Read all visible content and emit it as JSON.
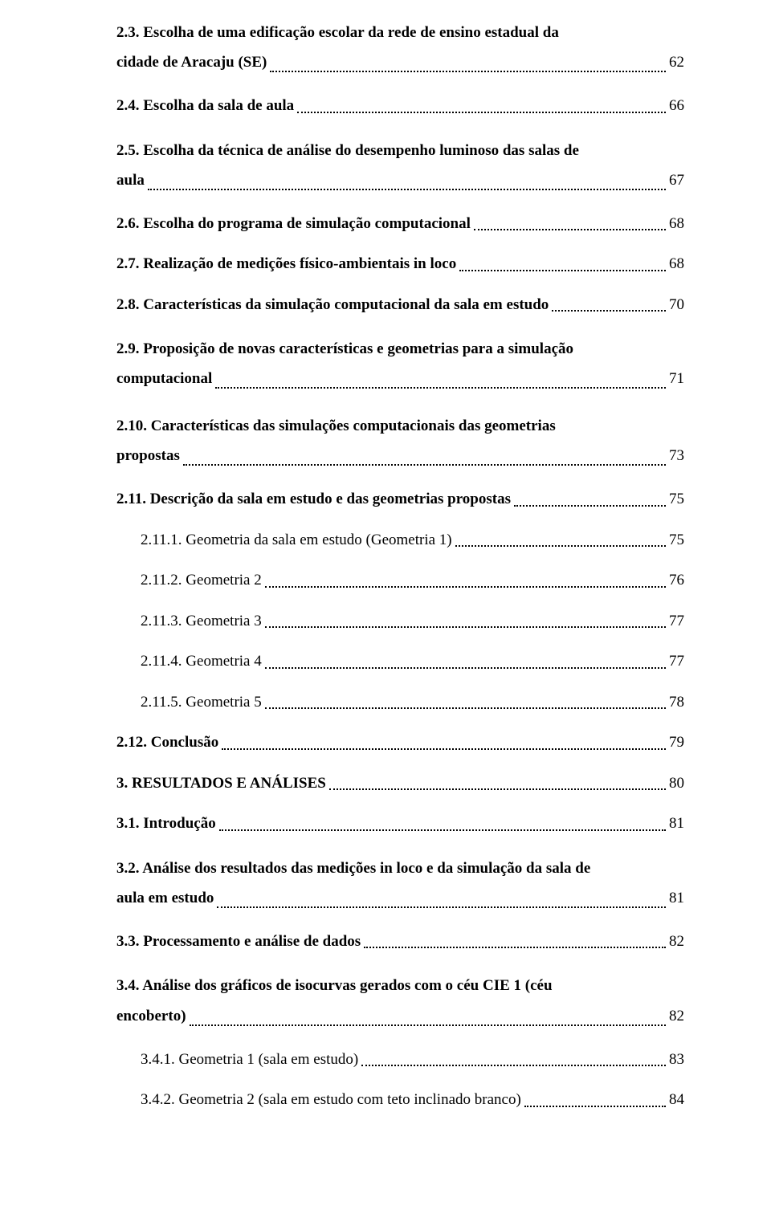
{
  "entries": [
    {
      "type": "multiline",
      "bold": true,
      "indent": 0,
      "line1": "2.3. Escolha de uma edificação escolar da rede de ensino estadual da",
      "line2_text": "cidade de Aracaju (SE)",
      "page": "62"
    },
    {
      "type": "single",
      "bold": true,
      "indent": 0,
      "text": "2.4. Escolha da sala de aula",
      "page": "66"
    },
    {
      "type": "multiline",
      "bold": true,
      "indent": 0,
      "line1": "2.5. Escolha da técnica de análise do desempenho luminoso das salas de",
      "line2_text": "aula",
      "page": "67"
    },
    {
      "type": "single",
      "bold": true,
      "indent": 0,
      "text": "2.6. Escolha do programa de simulação computacional",
      "page": "68"
    },
    {
      "type": "single",
      "bold": true,
      "indent": 0,
      "text": "2.7. Realização de medições físico-ambientais in loco",
      "page": "68"
    },
    {
      "type": "single",
      "bold": true,
      "indent": 0,
      "text": "2.8. Características da simulação computacional da sala em estudo",
      "page": "70"
    },
    {
      "type": "multiline",
      "bold": true,
      "indent": 0,
      "line1": "2.9. Proposição de novas características e geometrias para a simulação",
      "line2_text": "computacional",
      "page": "71"
    },
    {
      "type": "multiline",
      "bold": true,
      "indent": 0,
      "line1": "2.10. Características das simulações computacionais das geometrias",
      "line2_text": "propostas",
      "page": "73"
    },
    {
      "type": "single",
      "bold": true,
      "indent": 0,
      "text": "2.11. Descrição da sala em estudo e das geometrias propostas",
      "page": "75"
    },
    {
      "type": "single",
      "bold": false,
      "indent": 1,
      "text": "2.11.1. Geometria da sala em estudo (Geometria 1)",
      "page": "75"
    },
    {
      "type": "single",
      "bold": false,
      "indent": 1,
      "text": "2.11.2. Geometria 2",
      "page": "76"
    },
    {
      "type": "single",
      "bold": false,
      "indent": 1,
      "text": "2.11.3. Geometria 3",
      "page": "77"
    },
    {
      "type": "single",
      "bold": false,
      "indent": 1,
      "text": "2.11.4. Geometria 4",
      "page": "77"
    },
    {
      "type": "single",
      "bold": false,
      "indent": 1,
      "text": "2.11.5. Geometria 5",
      "page": "78"
    },
    {
      "type": "single",
      "bold": true,
      "indent": 0,
      "text": "2.12. Conclusão",
      "page": "79"
    },
    {
      "type": "single",
      "bold": true,
      "indent": 0,
      "text": "3. RESULTADOS E ANÁLISES",
      "page": "80"
    },
    {
      "type": "single",
      "bold": true,
      "indent": 0,
      "text": "3.1. Introdução",
      "page": "81"
    },
    {
      "type": "multiline",
      "bold": true,
      "indent": 0,
      "line1": "3.2. Análise dos resultados das medições in loco e da simulação da sala de",
      "line2_text": "aula em estudo",
      "page": "81"
    },
    {
      "type": "single",
      "bold": true,
      "indent": 0,
      "text": "3.3. Processamento e análise de dados",
      "page": "82"
    },
    {
      "type": "multiline",
      "bold": true,
      "indent": 0,
      "line1": "3.4. Análise dos gráficos de isocurvas gerados com o céu CIE 1 (céu",
      "line2_text": "encoberto)",
      "page": "82"
    },
    {
      "type": "single",
      "bold": false,
      "indent": 1,
      "text": "3.4.1. Geometria 1 (sala em estudo)",
      "page": "83"
    },
    {
      "type": "single",
      "bold": false,
      "indent": 1,
      "text": "3.4.2. Geometria 2 (sala em estudo com teto inclinado branco)",
      "page": "84"
    }
  ]
}
